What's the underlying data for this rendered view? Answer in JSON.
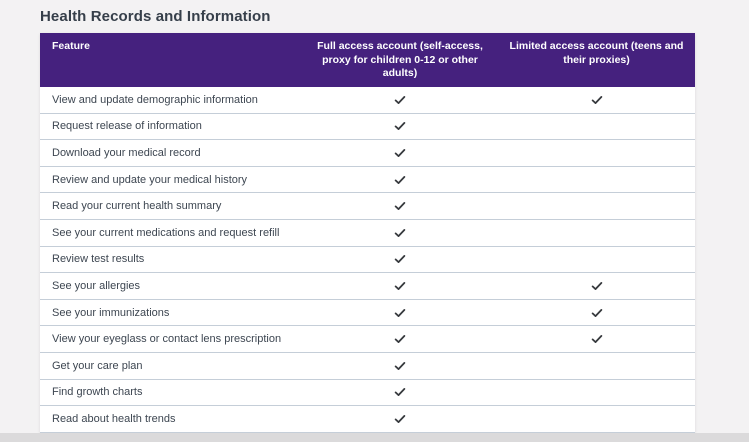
{
  "title": "Health Records and Information",
  "colors": {
    "header_bg": "#45217e",
    "header_text": "#ffffff",
    "row_border": "#c5ced8",
    "row_text": "#3d4651",
    "checkmark": "#36393d",
    "page_bg": "#f3f2f3",
    "bottom_band": "#dbdadb"
  },
  "table": {
    "columns": [
      "Feature",
      "Full access account (self-access, proxy for children 0-12 or other adults)",
      "Limited access account (teens and their proxies)"
    ],
    "check_icon": "checkmark-icon",
    "rows": [
      {
        "feature": "View and update demographic information",
        "full": true,
        "limited": true
      },
      {
        "feature": "Request release of information",
        "full": true,
        "limited": false
      },
      {
        "feature": "Download your medical record",
        "full": true,
        "limited": false
      },
      {
        "feature": "Review and update your medical history",
        "full": true,
        "limited": false
      },
      {
        "feature": "Read your current health summary",
        "full": true,
        "limited": false
      },
      {
        "feature": "See your current medications and request refill",
        "full": true,
        "limited": false
      },
      {
        "feature": "Review test results",
        "full": true,
        "limited": false
      },
      {
        "feature": "See your allergies",
        "full": true,
        "limited": true
      },
      {
        "feature": "See your immunizations",
        "full": true,
        "limited": true
      },
      {
        "feature": "View your eyeglass or contact lens prescription",
        "full": true,
        "limited": true
      },
      {
        "feature": "Get your care plan",
        "full": true,
        "limited": false
      },
      {
        "feature": "Find growth charts",
        "full": true,
        "limited": false
      },
      {
        "feature": "Read about health trends",
        "full": true,
        "limited": false
      }
    ]
  }
}
